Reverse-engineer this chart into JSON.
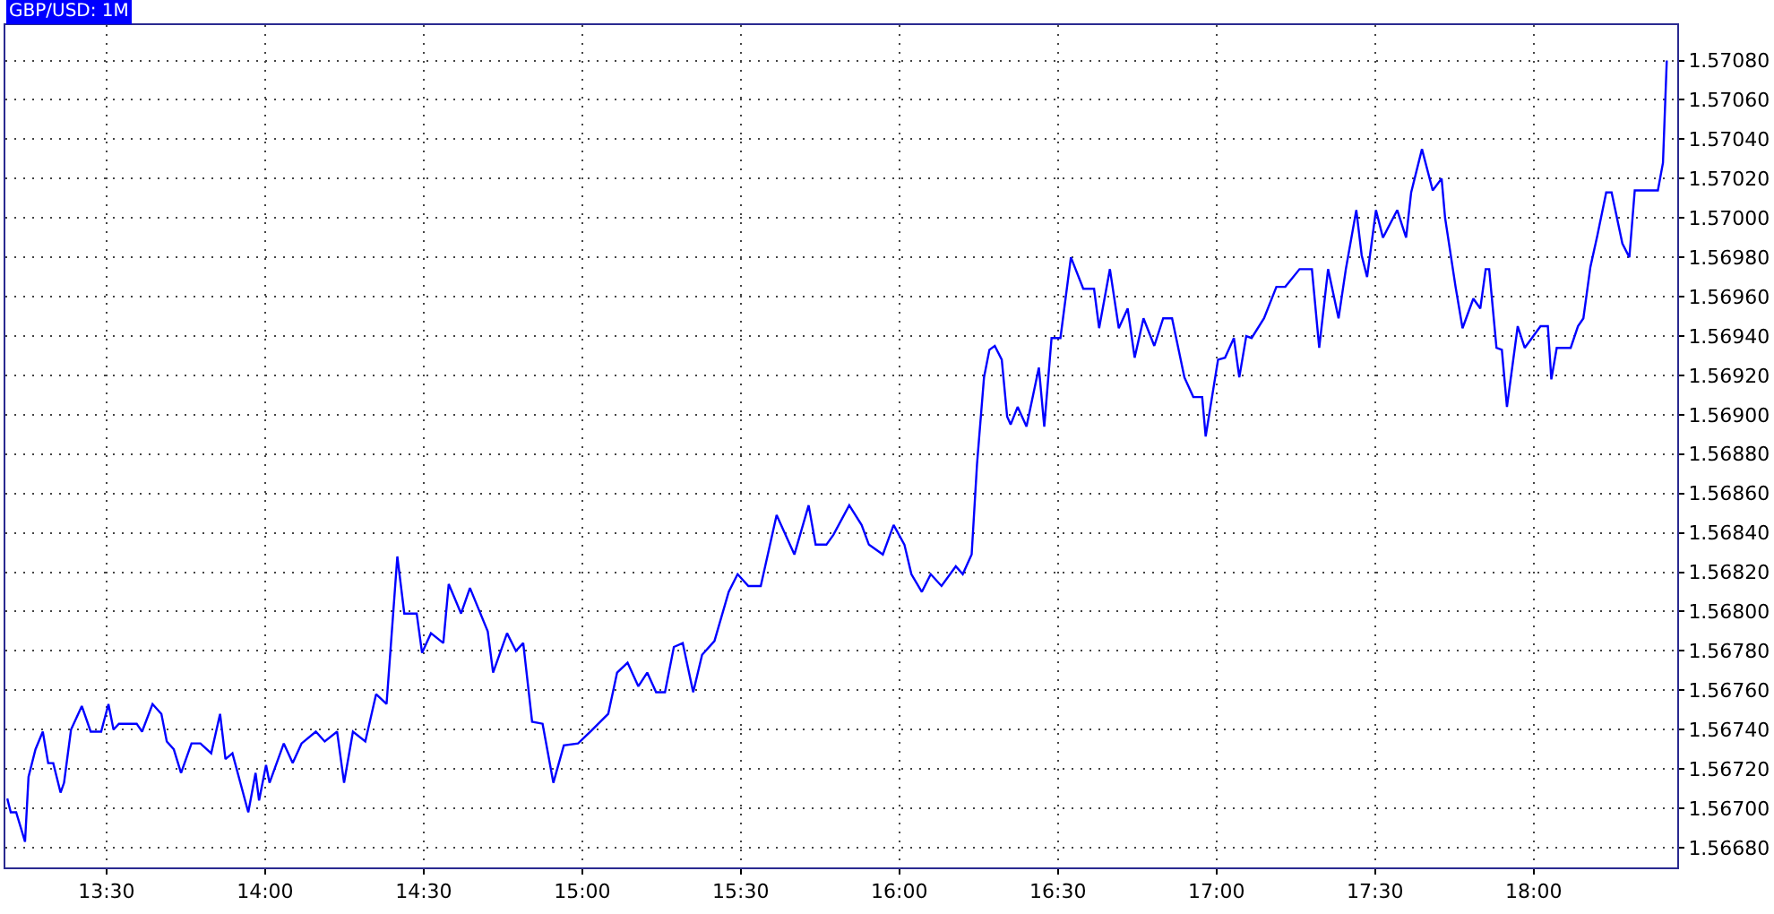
{
  "chart_data": {
    "type": "line",
    "title": "GBP/USD: 1M",
    "x": [
      13.187,
      13.198,
      13.215,
      13.243,
      13.254,
      13.276,
      13.299,
      13.316,
      13.332,
      13.355,
      13.366,
      13.388,
      13.422,
      13.45,
      13.483,
      13.506,
      13.522,
      13.539,
      13.595,
      13.612,
      13.645,
      13.673,
      13.69,
      13.712,
      13.735,
      13.768,
      13.796,
      13.83,
      13.858,
      13.875,
      13.897,
      13.947,
      13.97,
      13.981,
      14.003,
      14.014,
      14.059,
      14.087,
      14.115,
      14.16,
      14.188,
      14.227,
      14.249,
      14.277,
      14.316,
      14.35,
      14.383,
      14.417,
      14.439,
      14.478,
      14.495,
      14.523,
      14.562,
      14.579,
      14.618,
      14.646,
      14.702,
      14.719,
      14.763,
      14.791,
      14.814,
      14.842,
      14.875,
      14.909,
      14.942,
      14.987,
      15.026,
      15.082,
      15.11,
      15.143,
      15.177,
      15.205,
      15.233,
      15.261,
      15.289,
      15.317,
      15.35,
      15.378,
      15.417,
      15.462,
      15.49,
      15.524,
      15.563,
      15.613,
      15.669,
      15.714,
      15.736,
      15.77,
      15.792,
      15.842,
      15.881,
      15.904,
      15.948,
      15.982,
      16.016,
      16.038,
      16.071,
      16.099,
      16.133,
      16.178,
      16.2,
      16.228,
      16.245,
      16.267,
      16.284,
      16.301,
      16.323,
      16.34,
      16.351,
      16.373,
      16.401,
      16.44,
      16.457,
      16.48,
      16.508,
      16.541,
      16.58,
      16.614,
      16.63,
      16.664,
      16.692,
      16.72,
      16.742,
      16.77,
      16.804,
      16.832,
      16.86,
      16.899,
      16.927,
      16.955,
      16.966,
      17.005,
      17.027,
      17.055,
      17.072,
      17.094,
      17.111,
      17.15,
      17.189,
      17.217,
      17.262,
      17.301,
      17.324,
      17.352,
      17.385,
      17.408,
      17.441,
      17.458,
      17.475,
      17.503,
      17.525,
      17.57,
      17.598,
      17.614,
      17.648,
      17.682,
      17.71,
      17.721,
      17.754,
      17.776,
      17.81,
      17.832,
      17.849,
      17.86,
      17.883,
      17.9,
      17.916,
      17.95,
      17.972,
      18.022,
      18.045,
      18.056,
      18.073,
      18.117,
      18.14,
      18.157,
      18.179,
      18.201,
      18.229,
      18.246,
      18.28,
      18.302,
      18.319,
      18.392,
      18.408,
      18.42
    ],
    "series": [
      {
        "color": "#0000ff",
        "values": [
          1.56705,
          1.56698,
          1.56698,
          1.56683,
          1.56716,
          1.5673,
          1.56739,
          1.56723,
          1.56723,
          1.56708,
          1.56713,
          1.5674,
          1.56752,
          1.56739,
          1.56739,
          1.56753,
          1.5674,
          1.56743,
          1.56743,
          1.56739,
          1.56753,
          1.56748,
          1.56734,
          1.5673,
          1.56718,
          1.56733,
          1.56733,
          1.56728,
          1.56748,
          1.56725,
          1.56728,
          1.56698,
          1.56718,
          1.56704,
          1.56722,
          1.56713,
          1.56733,
          1.56723,
          1.56733,
          1.56739,
          1.56734,
          1.56739,
          1.56713,
          1.56739,
          1.56734,
          1.56758,
          1.56753,
          1.56828,
          1.56799,
          1.56799,
          1.56779,
          1.56789,
          1.56784,
          1.56814,
          1.56799,
          1.56812,
          1.5679,
          1.56769,
          1.56789,
          1.5678,
          1.56784,
          1.56744,
          1.56743,
          1.56713,
          1.56732,
          1.56733,
          1.56739,
          1.56748,
          1.56769,
          1.56774,
          1.56762,
          1.56769,
          1.56759,
          1.56759,
          1.56782,
          1.56784,
          1.56759,
          1.56778,
          1.56785,
          1.5681,
          1.56819,
          1.56813,
          1.56813,
          1.56849,
          1.56829,
          1.56854,
          1.56834,
          1.56834,
          1.56839,
          1.56854,
          1.56844,
          1.56834,
          1.56829,
          1.56844,
          1.56834,
          1.56819,
          1.5681,
          1.56819,
          1.56813,
          1.56823,
          1.56819,
          1.56829,
          1.56875,
          1.56919,
          1.56933,
          1.56935,
          1.56928,
          1.56899,
          1.56895,
          1.56904,
          1.56894,
          1.56924,
          1.56894,
          1.56939,
          1.56939,
          1.5698,
          1.56964,
          1.56964,
          1.56944,
          1.56974,
          1.56944,
          1.56954,
          1.56929,
          1.56949,
          1.56935,
          1.56949,
          1.56949,
          1.56919,
          1.56909,
          1.56909,
          1.56889,
          1.56928,
          1.56929,
          1.56939,
          1.56919,
          1.5694,
          1.56939,
          1.56949,
          1.56965,
          1.56965,
          1.56974,
          1.56974,
          1.56934,
          1.56974,
          1.56949,
          1.56974,
          1.57004,
          1.56981,
          1.5697,
          1.57004,
          1.5699,
          1.57004,
          1.5699,
          1.57013,
          1.57035,
          1.57014,
          1.5702,
          1.57,
          1.56965,
          1.56944,
          1.56959,
          1.56954,
          1.56974,
          1.56974,
          1.56934,
          1.56933,
          1.56904,
          1.56945,
          1.56934,
          1.56945,
          1.56945,
          1.56918,
          1.56934,
          1.56934,
          1.56945,
          1.56949,
          1.56975,
          1.56991,
          1.57013,
          1.57013,
          1.56987,
          1.5698,
          1.57014,
          1.57014,
          1.57028,
          1.5708
        ]
      }
    ],
    "xlim": [
      13.181,
      18.453
    ],
    "ylim": [
      1.5667,
      1.57098
    ],
    "xticks": [
      {
        "value": 13.5,
        "label": "13:30"
      },
      {
        "value": 14,
        "label": "14:00"
      },
      {
        "value": 14.5,
        "label": "14:30"
      },
      {
        "value": 15,
        "label": "15:00"
      },
      {
        "value": 15.5,
        "label": "15:30"
      },
      {
        "value": 16,
        "label": "16:00"
      },
      {
        "value": 16.5,
        "label": "16:30"
      },
      {
        "value": 17,
        "label": "17:00"
      },
      {
        "value": 17.5,
        "label": "17:30"
      },
      {
        "value": 18,
        "label": "18:00"
      }
    ],
    "yticks": [
      {
        "value": 1.5668,
        "label": "1.56680"
      },
      {
        "value": 1.567,
        "label": "1.56700"
      },
      {
        "value": 1.5672,
        "label": "1.56720"
      },
      {
        "value": 1.5674,
        "label": "1.56740"
      },
      {
        "value": 1.5676,
        "label": "1.56760"
      },
      {
        "value": 1.5678,
        "label": "1.56780"
      },
      {
        "value": 1.568,
        "label": "1.56800"
      },
      {
        "value": 1.5682,
        "label": "1.56820"
      },
      {
        "value": 1.5684,
        "label": "1.56840"
      },
      {
        "value": 1.5686,
        "label": "1.56860"
      },
      {
        "value": 1.5688,
        "label": "1.56880"
      },
      {
        "value": 1.569,
        "label": "1.56900"
      },
      {
        "value": 1.5692,
        "label": "1.56920"
      },
      {
        "value": 1.5694,
        "label": "1.56940"
      },
      {
        "value": 1.5696,
        "label": "1.56960"
      },
      {
        "value": 1.5698,
        "label": "1.56980"
      },
      {
        "value": 1.57,
        "label": "1.57000"
      },
      {
        "value": 1.5702,
        "label": "1.57020"
      },
      {
        "value": 1.5704,
        "label": "1.57040"
      },
      {
        "value": 1.5706,
        "label": "1.57060"
      },
      {
        "value": 1.5708,
        "label": "1.57080"
      }
    ],
    "grid": true
  }
}
